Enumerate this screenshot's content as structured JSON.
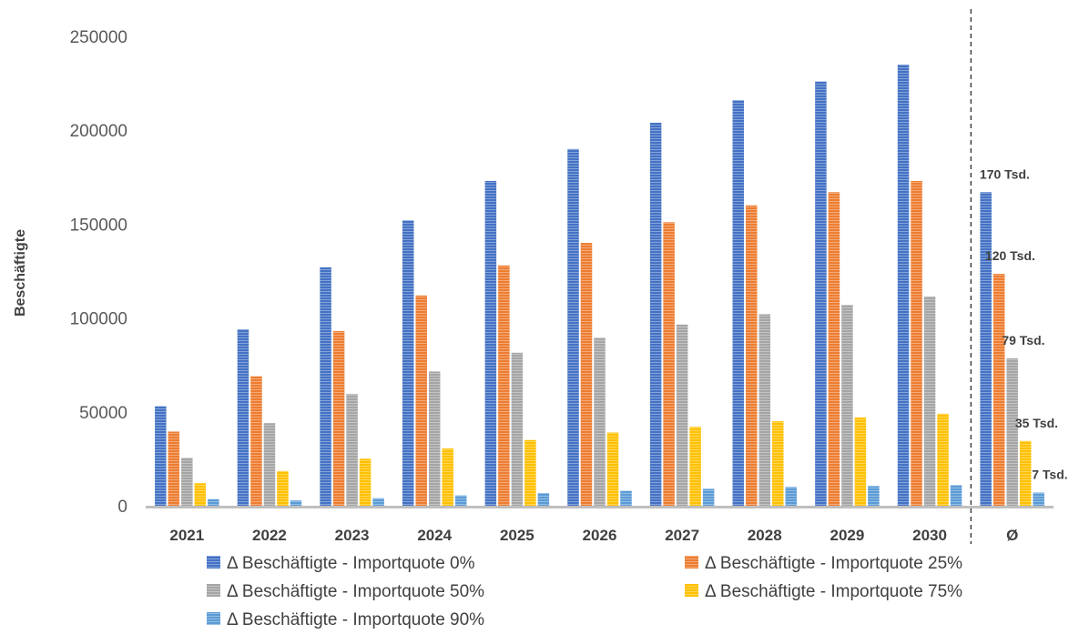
{
  "chart_data": {
    "type": "bar",
    "ylabel": "Beschäftigte",
    "xlabel": "",
    "ylim": [
      0,
      250000
    ],
    "yticks": [
      "0",
      "50000",
      "100000",
      "150000",
      "200000",
      "250000"
    ],
    "categories": [
      "2021",
      "2022",
      "2023",
      "2024",
      "2025",
      "2026",
      "2027",
      "2028",
      "2029",
      "2030",
      "Ø"
    ],
    "series": [
      {
        "name": "Δ  Beschäftigte - Importquote 0%",
        "color": "#4472C4",
        "values": [
          53000,
          94000,
          127000,
          152000,
          173000,
          190000,
          204000,
          216000,
          226000,
          235000,
          167000
        ]
      },
      {
        "name": "Δ  Beschäftigte - Importquote 25%",
        "color": "#ED7D31",
        "values": [
          39500,
          69000,
          93000,
          112000,
          128000,
          140000,
          151000,
          160000,
          167000,
          173000,
          123500
        ]
      },
      {
        "name": "Δ  Beschäftigte - Importquote 50%",
        "color": "#A5A5A5",
        "values": [
          25500,
          44000,
          59500,
          71500,
          81500,
          89500,
          96500,
          102000,
          107000,
          111500,
          78500
        ]
      },
      {
        "name": "Δ  Beschäftigte - Importquote 75%",
        "color": "#FFC000",
        "values": [
          12000,
          18500,
          25000,
          30500,
          35000,
          39000,
          42000,
          45000,
          47000,
          49000,
          34500
        ]
      },
      {
        "name": "Δ  Beschäftigte - Importquote 90%",
        "color": "#5B9BD5",
        "values": [
          3500,
          2800,
          4000,
          5500,
          6800,
          8000,
          9000,
          10000,
          10500,
          11000,
          7000
        ]
      }
    ],
    "average_labels": [
      "170 Tsd.",
      "120 Tsd.",
      "79 Tsd.",
      "35 Tsd.",
      "7 Tsd."
    ],
    "grid": false,
    "legend_position": "bottom"
  }
}
